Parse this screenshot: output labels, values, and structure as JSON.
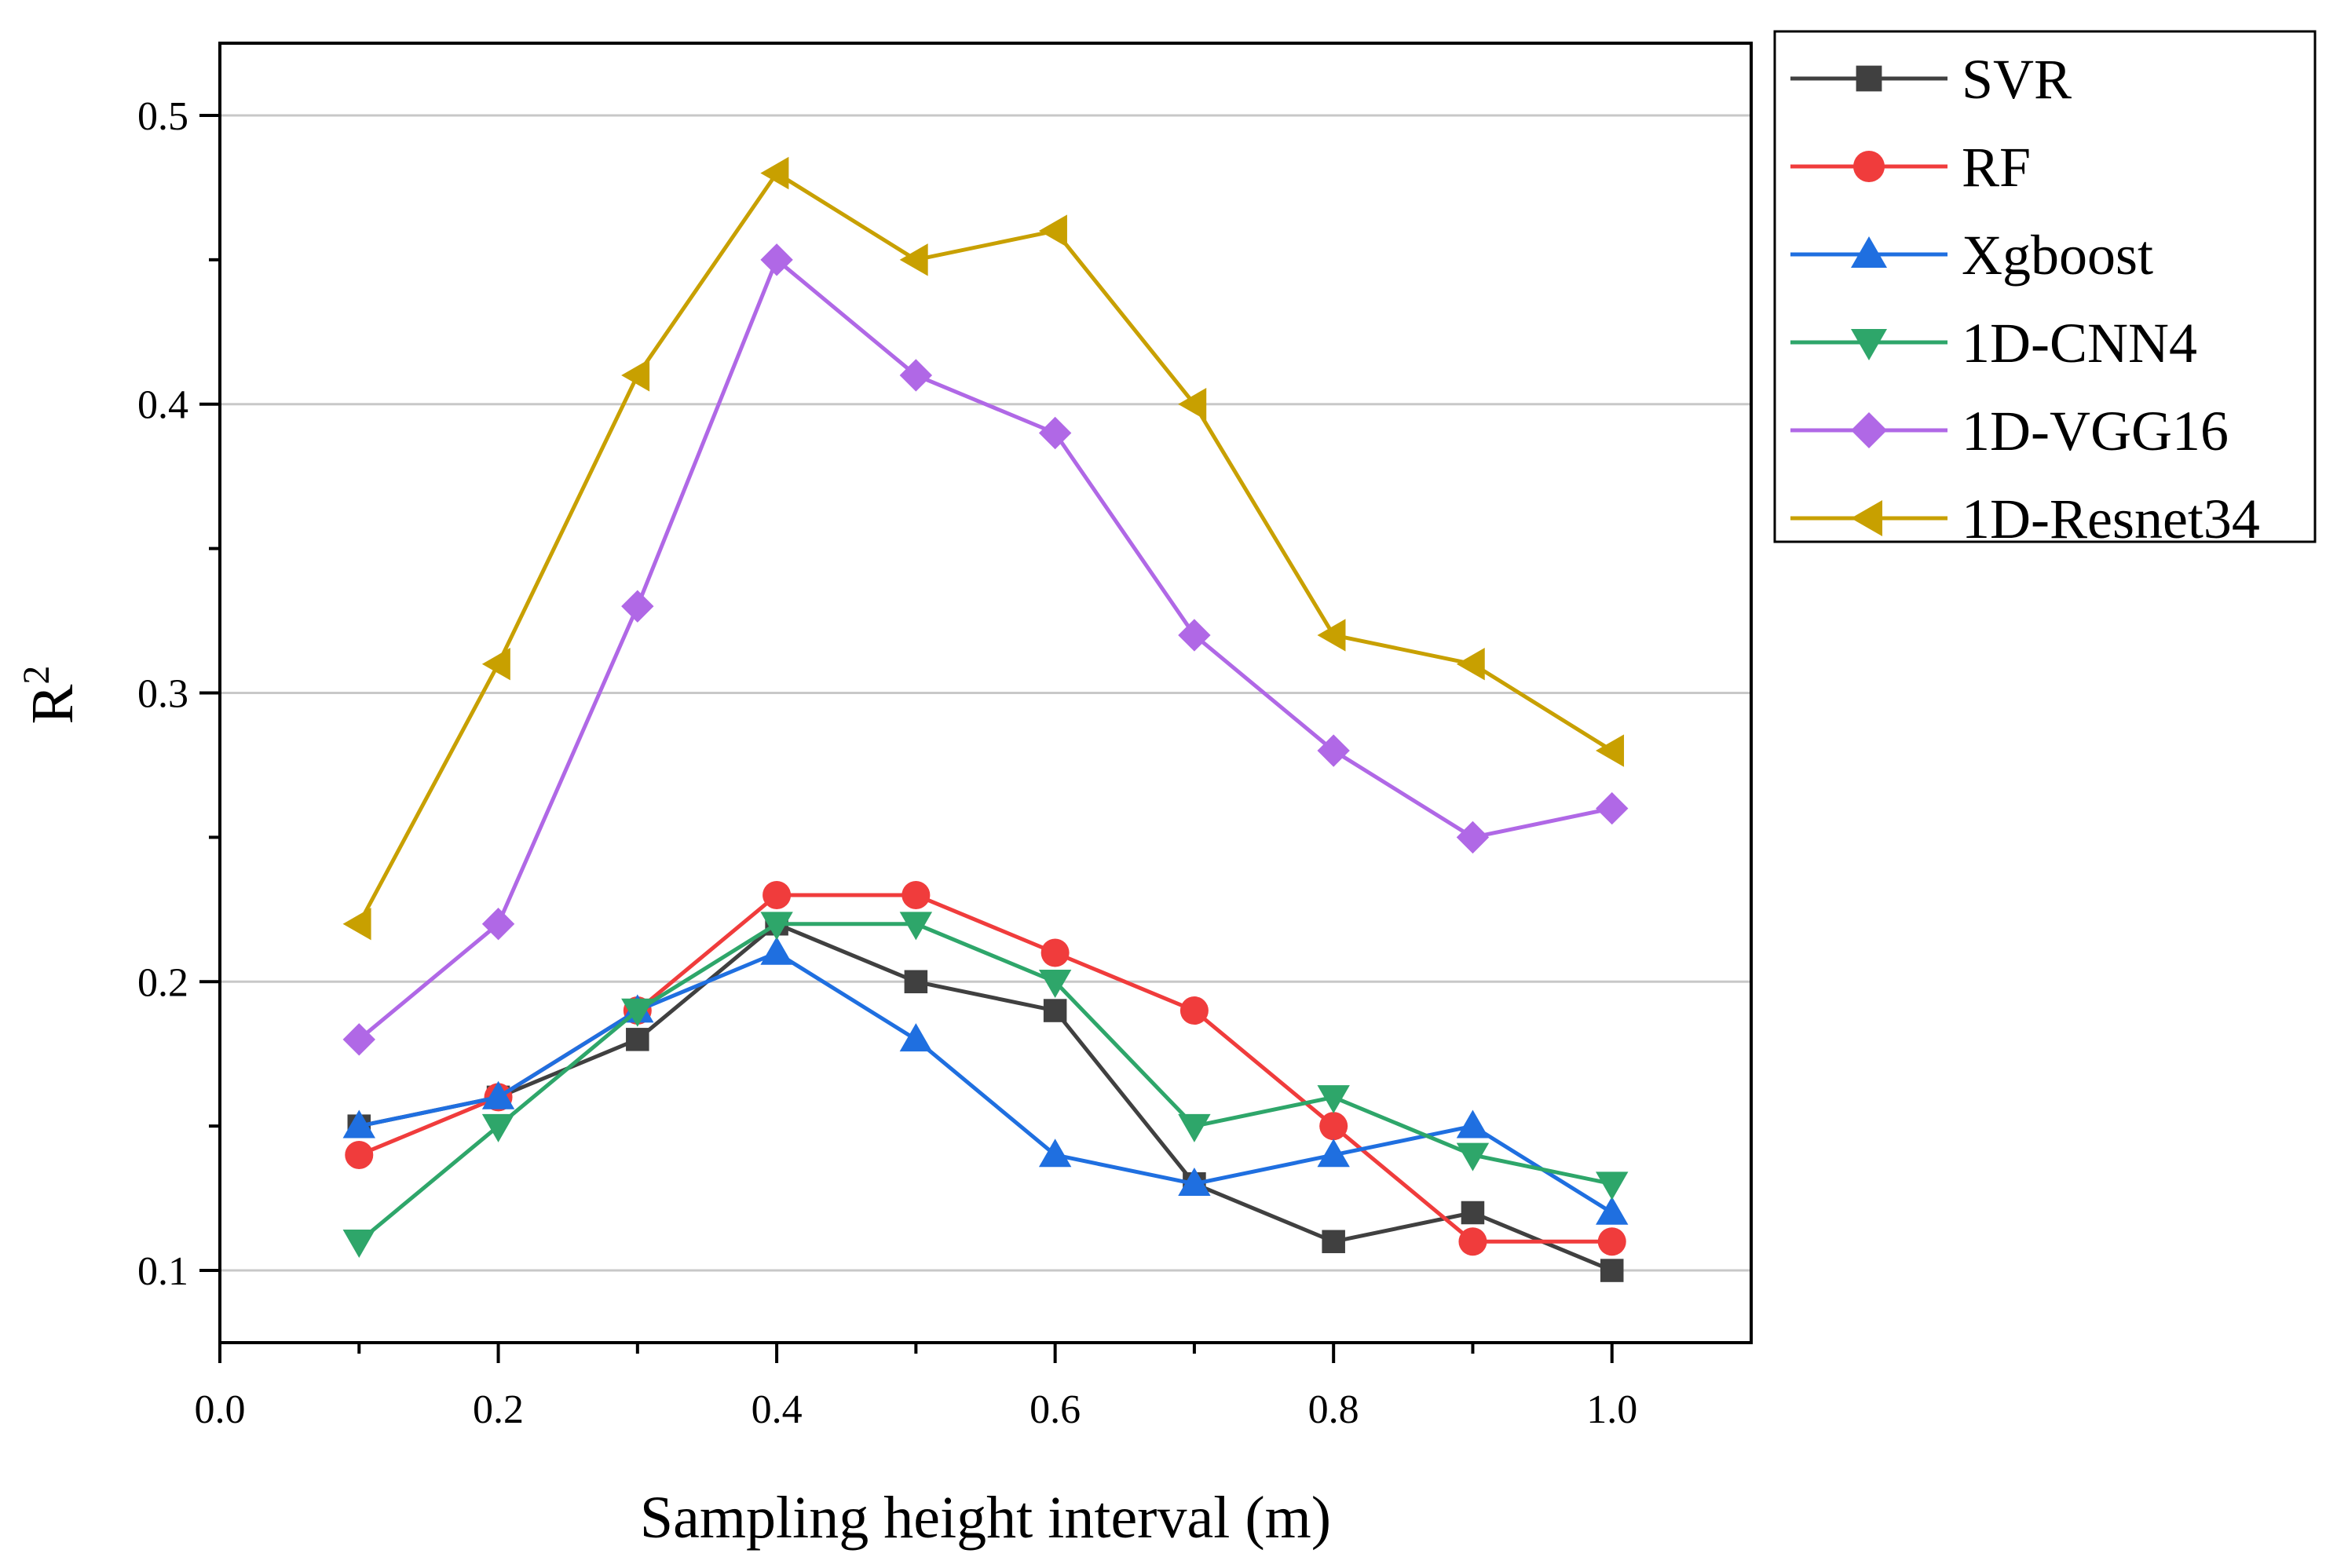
{
  "chart_data": {
    "type": "line",
    "title": "",
    "xlabel": "Sampling height interval (m)",
    "ylabel": "R",
    "ylabel_superscript": "2",
    "xlim": [
      0.0,
      1.1
    ],
    "ylim": [
      0.075,
      0.525
    ],
    "xticks": [
      "0.0",
      "0.2",
      "0.4",
      "0.6",
      "0.8",
      "1.0"
    ],
    "yticks": [
      "0.1",
      "0.2",
      "0.3",
      "0.4",
      "0.5"
    ],
    "grid": "horizontal",
    "legend_position": "top-right outside",
    "x": [
      0.1,
      0.2,
      0.3,
      0.4,
      0.5,
      0.6,
      0.7,
      0.8,
      0.9,
      1.0
    ],
    "series": [
      {
        "name": "SVR",
        "color": "#404040",
        "marker": "square",
        "values": [
          0.15,
          0.16,
          0.18,
          0.22,
          0.2,
          0.19,
          0.13,
          0.11,
          0.12,
          0.1
        ]
      },
      {
        "name": "RF",
        "color": "#f03c3c",
        "marker": "circle",
        "values": [
          0.14,
          0.16,
          0.19,
          0.23,
          0.23,
          0.21,
          0.19,
          0.15,
          0.11,
          0.11
        ]
      },
      {
        "name": "Xgboost",
        "color": "#1f6fe0",
        "marker": "triangle-up",
        "values": [
          0.15,
          0.16,
          0.19,
          0.21,
          0.18,
          0.14,
          0.13,
          0.14,
          0.15,
          0.12
        ]
      },
      {
        "name": "1D-CNN4",
        "color": "#2ea66a",
        "marker": "triangle-down",
        "values": [
          0.11,
          0.15,
          0.19,
          0.22,
          0.22,
          0.2,
          0.15,
          0.16,
          0.14,
          0.13
        ]
      },
      {
        "name": "1D-VGG16",
        "color": "#b068e6",
        "marker": "diamond",
        "values": [
          0.18,
          0.22,
          0.33,
          0.45,
          0.41,
          0.39,
          0.32,
          0.28,
          0.25,
          0.26
        ]
      },
      {
        "name": "1D-Resnet34",
        "color": "#c8a000",
        "marker": "triangle-left",
        "values": [
          0.22,
          0.31,
          0.41,
          0.48,
          0.45,
          0.46,
          0.4,
          0.32,
          0.31,
          0.28
        ]
      }
    ]
  }
}
